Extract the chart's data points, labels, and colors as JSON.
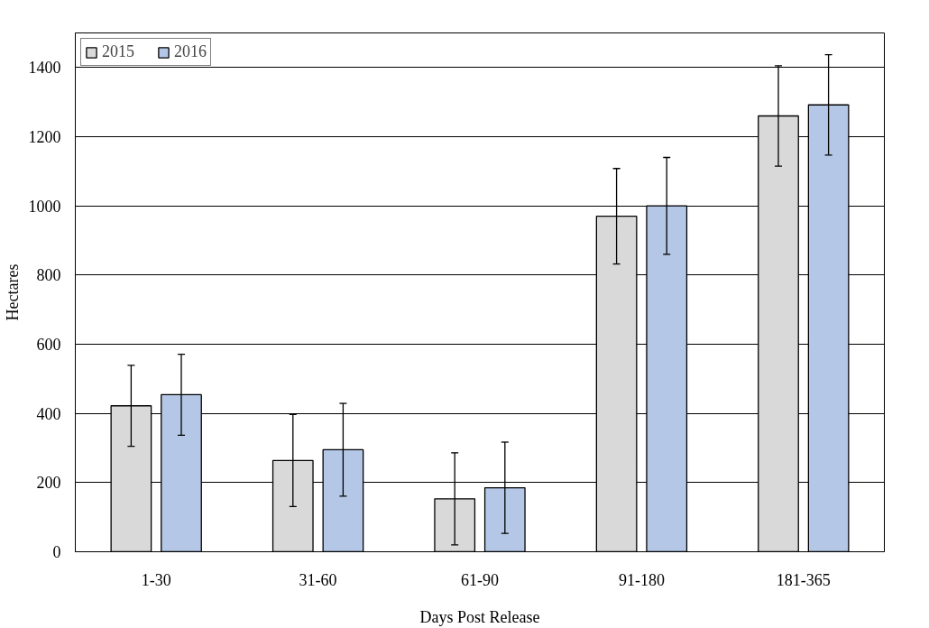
{
  "chart_data": {
    "type": "bar",
    "xlabel": "Days Post Release",
    "ylabel": "Hectares",
    "categories": [
      "1-30",
      "31-60",
      "61-90",
      "91-180",
      "181-365"
    ],
    "series": [
      {
        "name": "2015",
        "color": "#d9d9d9",
        "values": [
          422,
          264,
          153,
          970,
          1260
        ],
        "errors": [
          117,
          133,
          133,
          138,
          145
        ]
      },
      {
        "name": "2016",
        "color": "#b4c7e7",
        "values": [
          454,
          295,
          185,
          1000,
          1292
        ],
        "errors": [
          117,
          134,
          132,
          140,
          145
        ]
      }
    ],
    "ylim": [
      0,
      1500
    ],
    "yticks": [
      0,
      200,
      400,
      600,
      800,
      1000,
      1200,
      1400
    ],
    "grid": "y",
    "legend": "top left"
  }
}
